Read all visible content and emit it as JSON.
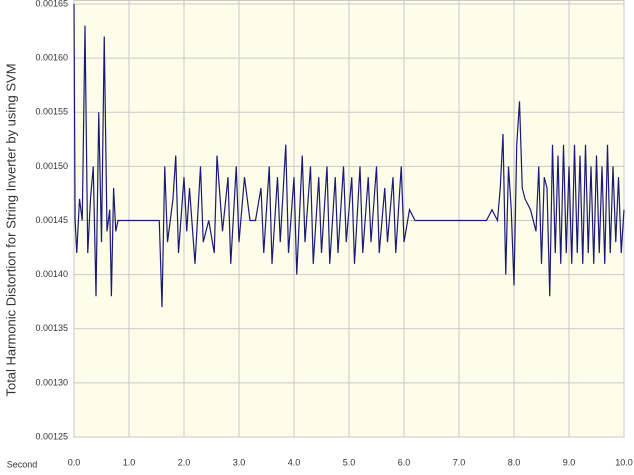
{
  "chart_data": {
    "type": "line",
    "y_label": "Total Harmonic  Distortion for String Inverter by using SVM",
    "x_label": "Second",
    "color": "#1a1a78",
    "grid": true,
    "xlim": [
      0,
      10
    ],
    "ylim": [
      0.00125,
      0.00165
    ],
    "xticks": [
      {
        "value": 0,
        "label": "0.0"
      },
      {
        "value": 1,
        "label": "1.0"
      },
      {
        "value": 2,
        "label": "2.0"
      },
      {
        "value": 3,
        "label": "3.0"
      },
      {
        "value": 4,
        "label": "4.0"
      },
      {
        "value": 5,
        "label": "5.0"
      },
      {
        "value": 6,
        "label": "6.0"
      },
      {
        "value": 7,
        "label": "7.0"
      },
      {
        "value": 8,
        "label": "8.0"
      },
      {
        "value": 9,
        "label": "9.0"
      },
      {
        "value": 10,
        "label": "10.0"
      }
    ],
    "yticks": [
      0.00125,
      {
        "value": 0.0013,
        "label": "0.00130"
      },
      0.00135,
      {
        "value": 0.0014,
        "label": "0.00140"
      },
      0.00145,
      {
        "value": 0.0015,
        "label": "0.00150"
      },
      0.00155,
      {
        "value": 0.0016,
        "label": "0.00160"
      },
      0.00165
    ],
    "x": [
      0.0,
      0.02,
      0.05,
      0.1,
      0.15,
      0.2,
      0.25,
      0.3,
      0.35,
      0.4,
      0.45,
      0.5,
      0.55,
      0.6,
      0.65,
      0.68,
      0.72,
      0.76,
      0.8,
      1.55,
      1.6,
      1.65,
      1.7,
      1.8,
      1.85,
      1.9,
      2.0,
      2.05,
      2.1,
      2.2,
      2.3,
      2.35,
      2.45,
      2.55,
      2.6,
      2.7,
      2.8,
      2.85,
      2.95,
      3.0,
      3.1,
      3.2,
      3.3,
      3.4,
      3.45,
      3.55,
      3.6,
      3.7,
      3.75,
      3.85,
      3.9,
      4.0,
      4.05,
      4.15,
      4.2,
      4.3,
      4.35,
      4.45,
      4.5,
      4.6,
      4.65,
      4.75,
      4.8,
      4.9,
      4.95,
      5.05,
      5.1,
      5.2,
      5.25,
      5.35,
      5.4,
      5.5,
      5.55,
      5.65,
      5.7,
      5.8,
      5.85,
      5.95,
      6.0,
      6.1,
      6.2,
      7.5,
      7.6,
      7.7,
      7.75,
      7.8,
      7.85,
      7.9,
      7.95,
      8.0,
      8.05,
      8.1,
      8.15,
      8.2,
      8.3,
      8.4,
      8.45,
      8.5,
      8.55,
      8.6,
      8.65,
      8.7,
      8.75,
      8.8,
      8.85,
      8.9,
      8.95,
      9.0,
      9.05,
      9.1,
      9.15,
      9.2,
      9.25,
      9.3,
      9.35,
      9.4,
      9.45,
      9.5,
      9.55,
      9.6,
      9.65,
      9.7,
      9.75,
      9.8,
      9.85,
      9.9,
      9.95,
      10.0
    ],
    "values": [
      0.00165,
      0.00145,
      0.00142,
      0.00147,
      0.00145,
      0.00163,
      0.00142,
      0.00147,
      0.0015,
      0.00138,
      0.00155,
      0.00143,
      0.00162,
      0.00144,
      0.00146,
      0.00138,
      0.00148,
      0.00144,
      0.00145,
      0.00145,
      0.00137,
      0.0015,
      0.00143,
      0.00147,
      0.00151,
      0.00142,
      0.00149,
      0.00144,
      0.00148,
      0.00141,
      0.0015,
      0.00143,
      0.00145,
      0.00142,
      0.00151,
      0.00144,
      0.00149,
      0.00141,
      0.0015,
      0.00143,
      0.00149,
      0.00145,
      0.00145,
      0.00148,
      0.00142,
      0.0015,
      0.00141,
      0.00149,
      0.00143,
      0.00152,
      0.00142,
      0.00149,
      0.0014,
      0.00151,
      0.00143,
      0.0015,
      0.00141,
      0.00149,
      0.00142,
      0.0015,
      0.00141,
      0.00149,
      0.00142,
      0.0015,
      0.00143,
      0.00149,
      0.00141,
      0.0015,
      0.00142,
      0.00149,
      0.00143,
      0.0015,
      0.00142,
      0.00148,
      0.00143,
      0.00149,
      0.00142,
      0.0015,
      0.00143,
      0.00146,
      0.00145,
      0.00145,
      0.00146,
      0.00145,
      0.00148,
      0.00153,
      0.0014,
      0.0015,
      0.00146,
      0.00139,
      0.00152,
      0.00156,
      0.00148,
      0.00147,
      0.00146,
      0.00144,
      0.0015,
      0.00141,
      0.00149,
      0.00148,
      0.00138,
      0.00152,
      0.00142,
      0.00151,
      0.00141,
      0.00152,
      0.00142,
      0.0015,
      0.00141,
      0.00152,
      0.00142,
      0.00151,
      0.00141,
      0.00152,
      0.00142,
      0.0015,
      0.00141,
      0.00151,
      0.00142,
      0.0015,
      0.00141,
      0.00152,
      0.00142,
      0.0015,
      0.00143,
      0.00149,
      0.00142,
      0.00146
    ]
  }
}
